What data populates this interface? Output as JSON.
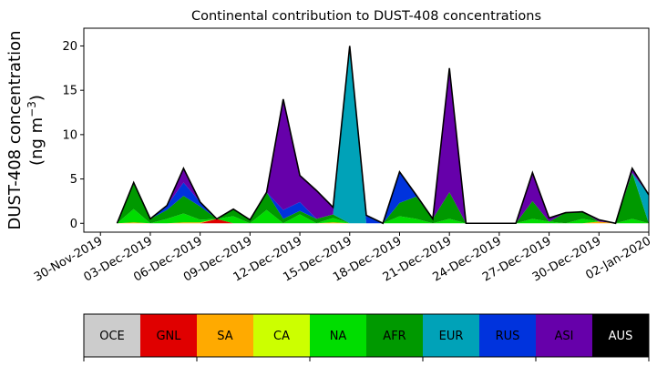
{
  "chart_data": {
    "type": "area",
    "stacked": true,
    "title": "Continental contribution to DUST-408 concentrations",
    "ylabel_line1": "DUST-408 concentration",
    "ylabel_line2_prefix": "(ng m",
    "ylabel_line2_sup": "−3",
    "ylabel_line2_suffix": ")",
    "xlabel": "",
    "x_start": "2019-12-01",
    "x_step_days": 1,
    "xlim": [
      "2019-11-29",
      "2020-01-02"
    ],
    "ylim": [
      -1,
      22
    ],
    "y_ticks": [
      0,
      5,
      10,
      15,
      20
    ],
    "x_ticks": [
      "30-Nov-2019",
      "03-Dec-2019",
      "06-Dec-2019",
      "09-Dec-2019",
      "12-Dec-2019",
      "15-Dec-2019",
      "18-Dec-2019",
      "21-Dec-2019",
      "24-Dec-2019",
      "27-Dec-2019",
      "30-Dec-2019",
      "02-Jan-2020"
    ],
    "x_tick_dates": [
      "2019-11-30",
      "2019-12-03",
      "2019-12-06",
      "2019-12-09",
      "2019-12-12",
      "2019-12-15",
      "2019-12-18",
      "2019-12-21",
      "2019-12-24",
      "2019-12-27",
      "2019-12-30",
      "2020-01-02"
    ],
    "grid": false,
    "legend_placement": "bottom",
    "series": [
      {
        "name": "OCE",
        "color": "#cccccc",
        "values": [
          0,
          0,
          0,
          0,
          0,
          0,
          0,
          0,
          0,
          0,
          0,
          0,
          0,
          0,
          0,
          0,
          0,
          0,
          0,
          0,
          0,
          0,
          0,
          0,
          0,
          0,
          0,
          0,
          0,
          0,
          0,
          0,
          0
        ]
      },
      {
        "name": "GNL",
        "color": "#e00000",
        "values": [
          0,
          0,
          0,
          0,
          0,
          0,
          0.5,
          0,
          0,
          0,
          0,
          0,
          0,
          0,
          0,
          0,
          0,
          0,
          0,
          0,
          0,
          0,
          0,
          0,
          0,
          0,
          0,
          0,
          0,
          0,
          0,
          0,
          0
        ]
      },
      {
        "name": "SA",
        "color": "#ffaa00",
        "values": [
          0,
          0.1,
          0,
          0,
          0.1,
          0.1,
          0,
          0,
          0,
          0,
          0,
          0,
          0,
          0.1,
          0,
          0,
          0,
          0,
          0,
          0,
          0,
          0,
          0,
          0,
          0,
          0,
          0,
          0,
          0,
          0.2,
          0,
          0,
          0
        ]
      },
      {
        "name": "CA",
        "color": "#ccff00",
        "values": [
          0,
          0,
          0,
          0,
          0,
          0,
          0,
          0,
          0,
          0,
          0,
          0,
          0,
          0,
          0,
          0,
          0,
          0,
          0,
          0,
          0,
          0,
          0,
          0,
          0,
          0,
          0,
          0,
          0,
          0,
          0,
          0,
          0
        ]
      },
      {
        "name": "NA",
        "color": "#00dd00",
        "values": [
          0,
          1.5,
          0,
          0.5,
          1.0,
          0.3,
          0,
          0.8,
          0,
          1.5,
          0,
          1.0,
          0,
          0.5,
          0,
          0,
          0,
          0.8,
          0.5,
          0,
          0.5,
          0,
          0,
          0,
          0,
          0.5,
          0.2,
          0,
          0.5,
          0,
          0,
          0.5,
          0
        ]
      },
      {
        "name": "AFR",
        "color": "#009900",
        "values": [
          0,
          3.0,
          0.5,
          1.0,
          2.0,
          1.5,
          0,
          0.8,
          0.4,
          2.0,
          0.5,
          0.4,
          0.5,
          0.4,
          0,
          0,
          0,
          1.5,
          2.5,
          0.5,
          3.0,
          0,
          0,
          0,
          0,
          2.0,
          0,
          1.2,
          0.8,
          0,
          0,
          5.2,
          0
        ]
      },
      {
        "name": "EUR",
        "color": "#00a2b8",
        "values": [
          0,
          0,
          0,
          0,
          0,
          0,
          0,
          0,
          0,
          0,
          0,
          0,
          0,
          0,
          20.0,
          0,
          0,
          0,
          0,
          0,
          0,
          0,
          0,
          0,
          0,
          0,
          0,
          0,
          0,
          0,
          0,
          0,
          3.2
        ]
      },
      {
        "name": "RUS",
        "color": "#0033dd",
        "values": [
          0,
          0,
          0,
          0.5,
          1.5,
          0.5,
          0,
          0,
          0,
          0,
          1.0,
          1.0,
          0,
          0,
          0,
          0.9,
          0,
          3.5,
          0.2,
          0,
          0,
          0,
          0,
          0,
          0,
          0,
          0,
          0,
          0,
          0,
          0,
          0,
          0
        ]
      },
      {
        "name": "ASI",
        "color": "#6600aa",
        "values": [
          0,
          0,
          0,
          0,
          1.6,
          0,
          0,
          0,
          0,
          0,
          12.5,
          3.0,
          3.2,
          0.8,
          0,
          0,
          0,
          0,
          0,
          0,
          14.0,
          0,
          0,
          0,
          0,
          3.2,
          0.4,
          0,
          0,
          0.2,
          0,
          0.5,
          0
        ]
      },
      {
        "name": "AUS",
        "color": "#000000",
        "values": [
          0,
          0,
          0,
          0,
          0,
          0,
          0,
          0,
          0,
          0,
          0,
          0,
          0,
          0,
          0,
          0,
          0,
          0,
          0,
          0,
          0,
          0,
          0,
          0,
          0,
          0,
          0,
          0,
          0,
          0,
          0,
          0,
          0
        ]
      }
    ]
  }
}
